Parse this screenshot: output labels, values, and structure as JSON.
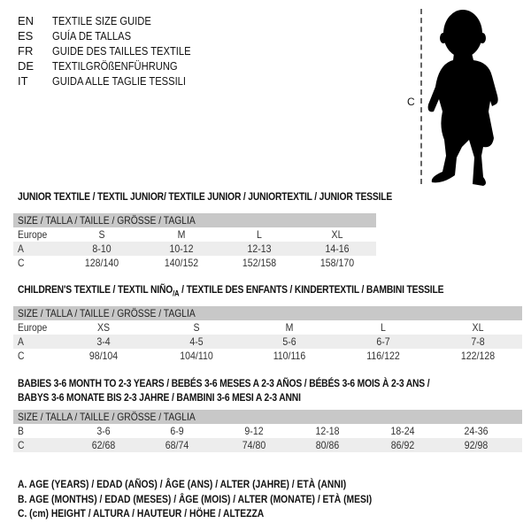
{
  "header": {
    "languages": [
      {
        "code": "EN",
        "title": "TEXTILE SIZE GUIDE"
      },
      {
        "code": "ES",
        "title": "GUÍA DE TALLAS"
      },
      {
        "code": "FR",
        "title": "GUIDE DES TAILLES TEXTILE"
      },
      {
        "code": "DE",
        "title": "TEXTILGRÖßENFÜHRUNG"
      },
      {
        "code": "IT",
        "title": "GUIDA ALLE TAGLIE TESSILI"
      }
    ]
  },
  "figure": {
    "height_label": "C"
  },
  "tables": {
    "junior": {
      "title": "JUNIOR TEXTILE / TEXTIL JUNIOR/ TEXTILE JUNIOR / JUNIORTEXTIL / JUNIOR TESSILE",
      "header": "SIZE / TALLA / TAILLE / GRÖSSE / TAGLIA",
      "rows": [
        {
          "label": "Europe",
          "values": [
            "S",
            "M",
            "L",
            "XL"
          ]
        },
        {
          "label": "A",
          "values": [
            "8-10",
            "10-12",
            "12-13",
            "14-16"
          ]
        },
        {
          "label": "C",
          "values": [
            "128/140",
            "140/152",
            "152/158",
            "158/170"
          ]
        }
      ]
    },
    "children": {
      "title_main": "CHILDREN'S TEXTILE / TEXTIL NIÑO",
      "title_sub": "/A",
      "title_rest": " / TEXTILE DES ENFANTS / KINDERTEXTIL / BAMBINI TESSILE",
      "header": "SIZE / TALLA / TAILLE / GRÖSSE / TAGLIA",
      "rows": [
        {
          "label": "Europe",
          "values": [
            "XS",
            "S",
            "M",
            "L",
            "XL"
          ]
        },
        {
          "label": "A",
          "values": [
            "3-4",
            "4-5",
            "5-6",
            "6-7",
            "7-8"
          ]
        },
        {
          "label": "C",
          "values": [
            "98/104",
            "104/110",
            "110/116",
            "116/122",
            "122/128"
          ]
        }
      ]
    },
    "babies": {
      "title_line1": "BABIES 3-6 MONTH TO 2-3 YEARS / BEBÉS 3-6 MESES A 2-3 AÑOS / BÉBÉS 3-6 MOIS À 2-3 ANS /",
      "title_line2": "BABYS 3-6 MONATE BIS 2-3 JAHRE / BAMBINI 3-6 MESI A 2-3 ANNI",
      "header": "SIZE / TALLA / TAILLE / GRÖSSE / TAGLIA",
      "rows": [
        {
          "label": "B",
          "values": [
            "3-6",
            "6-9",
            "9-12",
            "12-18",
            "18-24",
            "24-36"
          ]
        },
        {
          "label": "C",
          "values": [
            "62/68",
            "68/74",
            "74/80",
            "80/86",
            "86/92",
            "92/98"
          ]
        }
      ]
    }
  },
  "legend": [
    "A. AGE (YEARS) / EDAD (AÑOS) / ÂGE (ANS) / ALTER (JAHRE) / ETÀ (ANNI)",
    "B. AGE (MONTHS) / EDAD (MESES) / ÂGE (MOIS) / ALTER (MONATE) / ETÀ (MESI)",
    "C. (cm) HEIGHT / ALTURA / HAUTEUR / HÖHE / ALTEZZA"
  ]
}
